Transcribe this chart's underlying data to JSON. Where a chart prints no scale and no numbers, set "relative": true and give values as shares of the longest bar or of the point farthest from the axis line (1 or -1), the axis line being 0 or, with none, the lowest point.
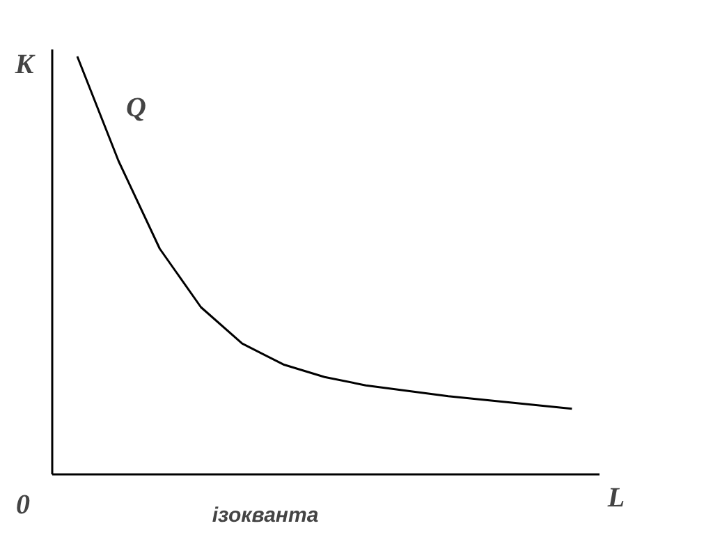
{
  "chart_data": {
    "type": "line",
    "relative": true,
    "xlabel": "L",
    "ylabel": "K",
    "annotations": [
      "0",
      "ізокванта"
    ],
    "categories": [
      null,
      null,
      null,
      null,
      null,
      null,
      null,
      null,
      null,
      null,
      null,
      null,
      null
    ],
    "series": [
      {
        "name": "Q",
        "color": "#000000",
        "values": [
          1,
          0.75,
          0.54,
          0.4,
          0.313,
          0.263,
          0.233,
          0.213,
          0.2,
          0.187,
          0.177,
          0.167,
          0.157
        ]
      }
    ],
    "grid": false,
    "legend": false
  }
}
